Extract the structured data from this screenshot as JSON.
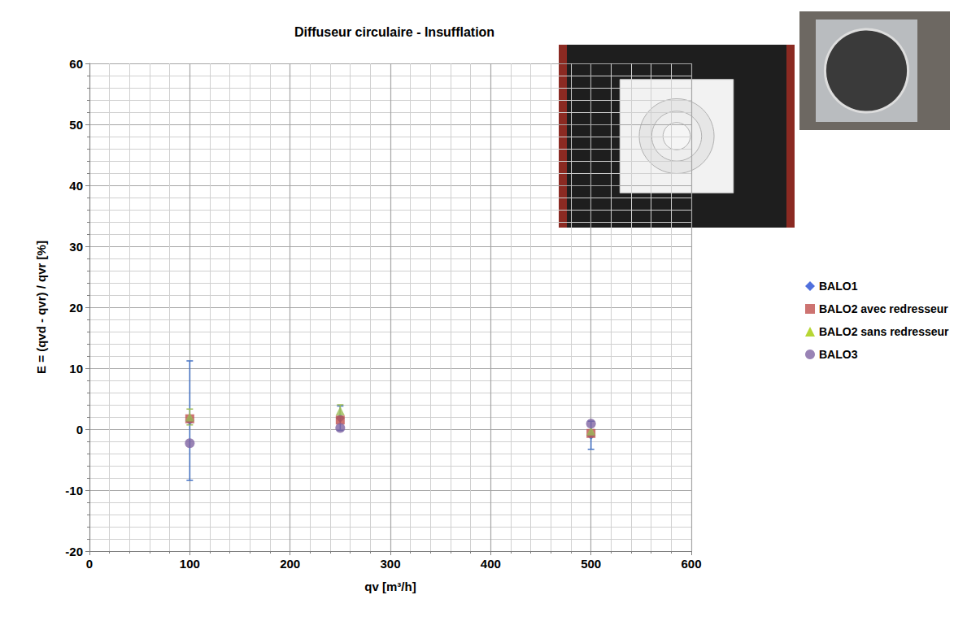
{
  "chart_data": {
    "type": "scatter",
    "title": "Diffuseur circulaire - Insufflation",
    "x_label": "qv [m³/h]",
    "y_label": "E = (qvd - qvr) / qvr [%]",
    "xlim": [
      0,
      600
    ],
    "xticks": [
      0,
      100,
      200,
      300,
      400,
      500,
      600
    ],
    "ylim": [
      -20,
      60
    ],
    "yticks": [
      -20,
      -10,
      0,
      10,
      20,
      30,
      40,
      50,
      60
    ],
    "grid": true,
    "legend": "right",
    "series": [
      {
        "name": "BALO1",
        "color": "#4472c4",
        "marker": "diamond",
        "x": [
          100,
          250,
          500
        ],
        "values": [
          1.4,
          1.8,
          -1.0
        ],
        "errors": [
          9.8,
          2.0,
          2.3
        ]
      },
      {
        "name": "BALO2 avec redresseur",
        "color": "#c0504d",
        "marker": "square",
        "x": [
          100,
          250,
          500
        ],
        "values": [
          1.7,
          1.5,
          -0.7
        ]
      },
      {
        "name": "BALO2 sans redresseur",
        "color": "#9bbb59",
        "marker": "triangle",
        "x": [
          100,
          250,
          500
        ],
        "values": [
          2.0,
          3.0,
          -0.3
        ],
        "errors": [
          1.3,
          1.0,
          null
        ]
      },
      {
        "name": "BALO3",
        "color": "#8064a2",
        "marker": "circle",
        "x": [
          100,
          250,
          500
        ],
        "values": [
          -2.3,
          0.2,
          0.9
        ]
      }
    ]
  }
}
